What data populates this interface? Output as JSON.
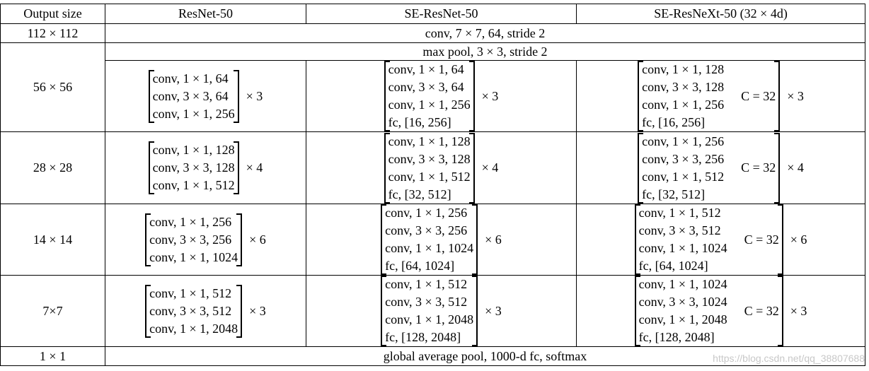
{
  "header": [
    "Output size",
    "ResNet-50",
    "SE-ResNet-50",
    "SE-ResNeXt-50 (32 × 4d)"
  ],
  "conv1": {
    "output": "112 × 112",
    "layer": "conv, 7 × 7, 64, stride 2"
  },
  "stages": [
    {
      "output": "56 × 56",
      "pool": "max pool, 3 × 3, stride 2",
      "resnet": {
        "lines": [
          "conv, 1 × 1, 64",
          "conv, 3 × 3, 64",
          "conv, 1 × 1, 256"
        ],
        "repeat": "× 3"
      },
      "se_resnet": {
        "lines": [
          "conv, 1 × 1, 64",
          "conv, 3 × 3, 64",
          "conv, 1 × 1, 256",
          "fc, [16, 256]"
        ],
        "repeat": "× 3"
      },
      "se_resnext": {
        "lines": [
          "conv, 1 × 1, 128",
          "conv, 3 × 3, 128",
          "conv, 1 × 1, 256",
          "fc, [16, 256]"
        ],
        "cardinality": "C = 32",
        "repeat": "× 3"
      }
    },
    {
      "output": "28 × 28",
      "resnet": {
        "lines": [
          "conv, 1 × 1, 128",
          "conv, 3 × 3, 128",
          "conv, 1 × 1, 512"
        ],
        "repeat": "× 4"
      },
      "se_resnet": {
        "lines": [
          "conv, 1 × 1, 128",
          "conv, 3 × 3, 128",
          "conv, 1 × 1, 512",
          "fc, [32, 512]"
        ],
        "repeat": "× 4"
      },
      "se_resnext": {
        "lines": [
          "conv, 1 × 1, 256",
          "conv, 3 × 3, 256",
          "conv, 1 × 1, 512",
          "fc, [32, 512]"
        ],
        "cardinality": "C = 32",
        "repeat": "× 4"
      }
    },
    {
      "output": "14 × 14",
      "resnet": {
        "lines": [
          "conv, 1 × 1, 256",
          "conv, 3 × 3, 256",
          "conv, 1 × 1, 1024"
        ],
        "repeat": "× 6"
      },
      "se_resnet": {
        "lines": [
          "conv, 1 × 1, 256",
          "conv, 3 × 3, 256",
          "conv, 1 × 1, 1024",
          "fc, [64, 1024]"
        ],
        "repeat": "× 6"
      },
      "se_resnext": {
        "lines": [
          "conv, 1 × 1, 512",
          "conv, 3 × 3, 512",
          "conv, 1 × 1, 1024",
          "fc, [64, 1024]"
        ],
        "cardinality": "C = 32",
        "repeat": "× 6"
      }
    },
    {
      "output": "7×7",
      "resnet": {
        "lines": [
          "conv, 1 × 1, 512",
          "conv, 3 × 3, 512",
          "conv, 1 × 1, 2048"
        ],
        "repeat": "× 3"
      },
      "se_resnet": {
        "lines": [
          "conv, 1 × 1, 512",
          "conv, 3 × 3, 512",
          "conv, 1 × 1, 2048",
          "fc, [128, 2048]"
        ],
        "repeat": "× 3"
      },
      "se_resnext": {
        "lines": [
          "conv, 1 × 1, 1024",
          "conv, 3 × 3, 1024",
          "conv, 1 × 1, 2048",
          "fc, [128, 2048]"
        ],
        "cardinality": "C = 32",
        "repeat": "× 3"
      }
    }
  ],
  "final": {
    "output": "1 × 1",
    "layer": "global average pool, 1000-d fc, softmax"
  },
  "watermark": "https://blog.csdn.net/qq_38807688"
}
